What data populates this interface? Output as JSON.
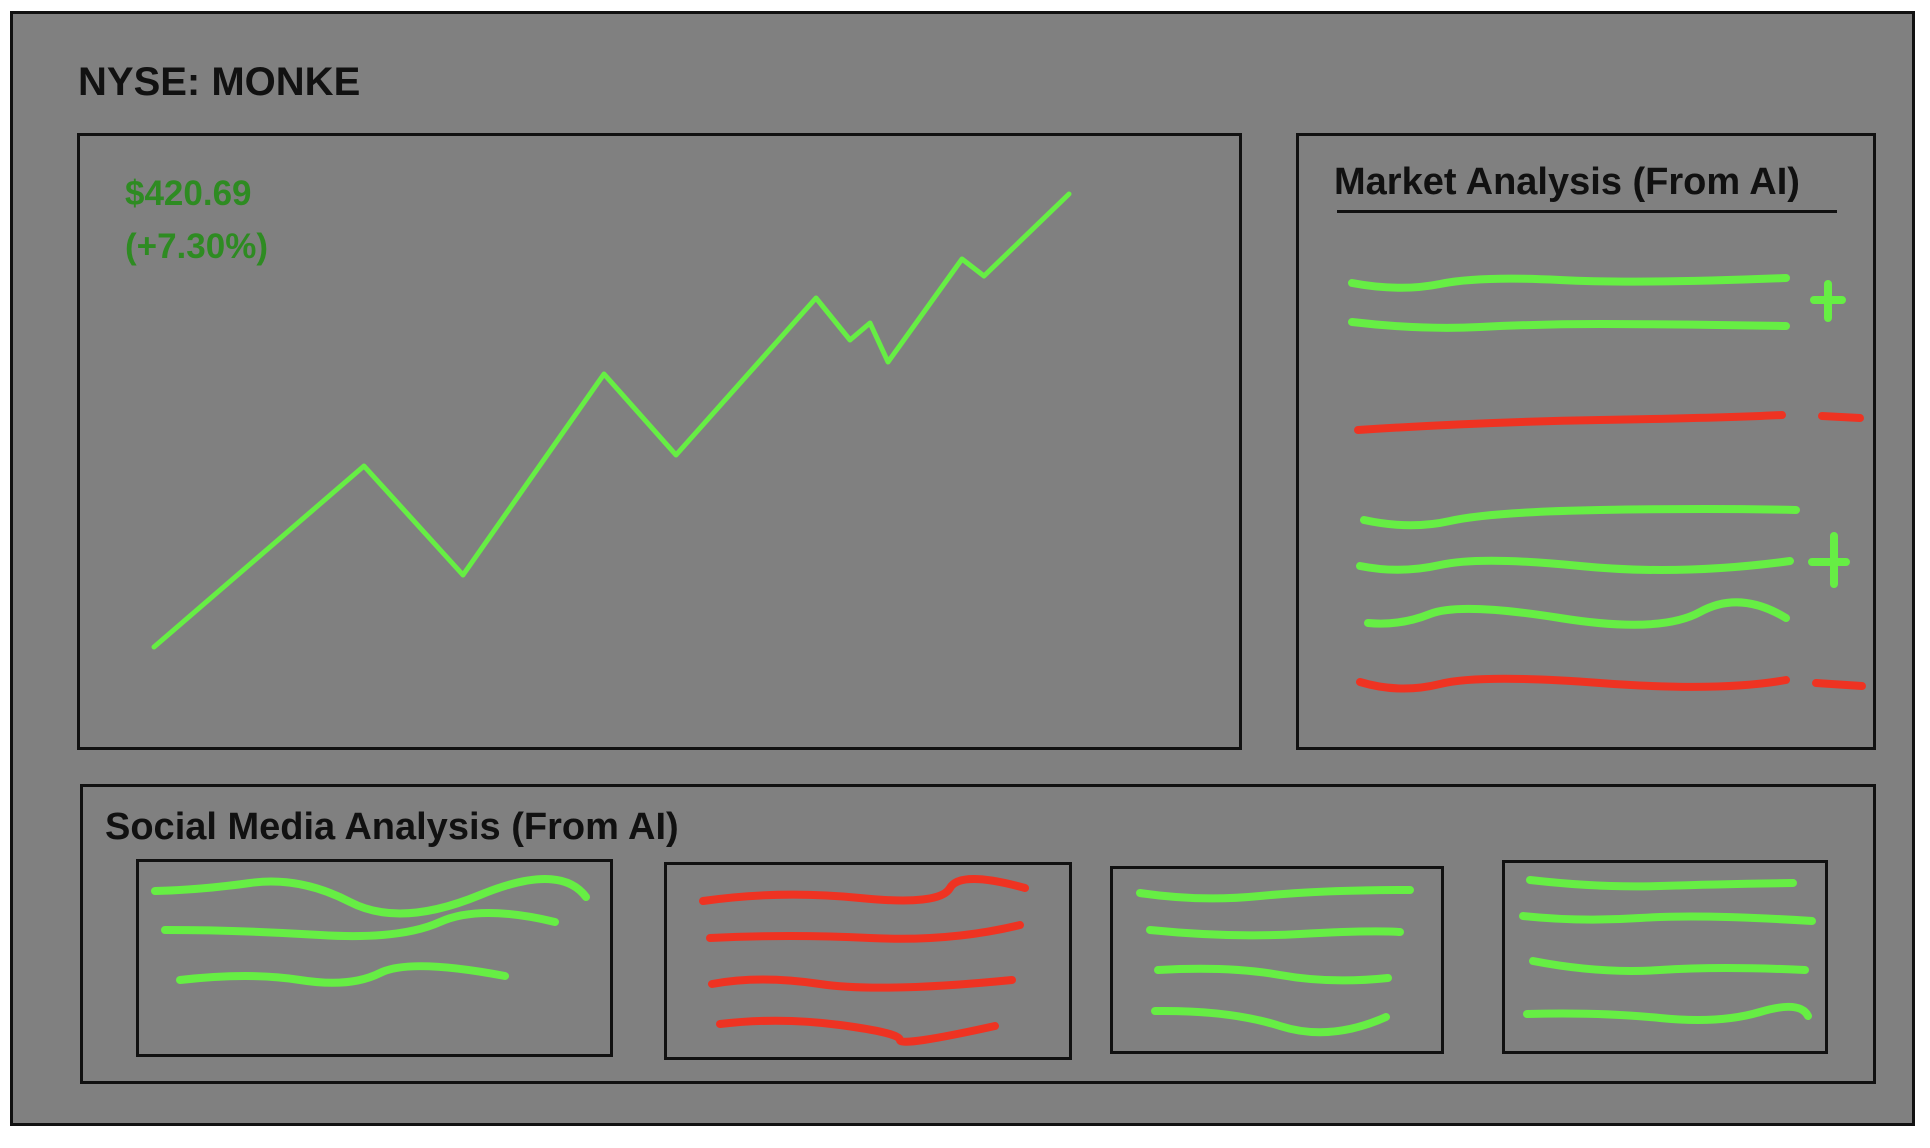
{
  "header": {
    "ticker": "NYSE: MONKE"
  },
  "price_panel": {
    "price": "$420.69",
    "change": "(+7.30%)"
  },
  "market_analysis": {
    "title": "Market Analysis (From AI)",
    "groups": [
      {
        "sentiment": "positive",
        "symbol": "+",
        "lines": 2
      },
      {
        "sentiment": "negative",
        "symbol": "-",
        "lines": 1
      },
      {
        "sentiment": "positive",
        "symbol": "+",
        "lines": 3
      },
      {
        "sentiment": "negative",
        "symbol": "-",
        "lines": 1
      }
    ]
  },
  "social_analysis": {
    "title": "Social Media Analysis (From AI)",
    "cards": [
      {
        "sentiment": "positive",
        "lines": 3
      },
      {
        "sentiment": "negative",
        "lines": 4
      },
      {
        "sentiment": "positive",
        "lines": 4
      },
      {
        "sentiment": "positive",
        "lines": 4
      }
    ]
  },
  "colors": {
    "background": "#808080",
    "border": "#111111",
    "price_text": "#2e8b22",
    "positive": "#66ee44",
    "negative": "#ee3322"
  }
}
